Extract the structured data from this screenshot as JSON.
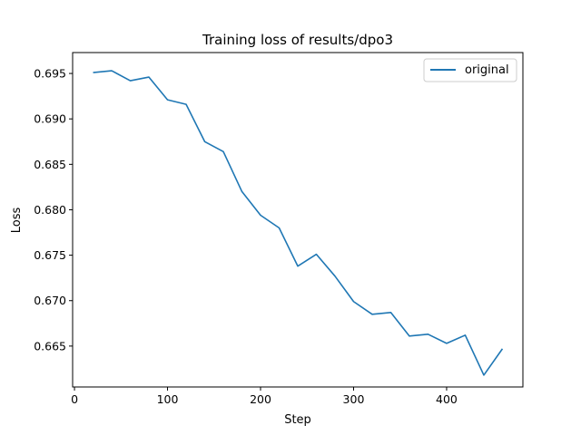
{
  "chart_data": {
    "type": "line",
    "title": "Training loss of results/dpo3",
    "xlabel": "Step",
    "ylabel": "Loss",
    "xlim": [
      -2,
      482
    ],
    "ylim": [
      0.6605,
      0.6973
    ],
    "xticks": [
      0,
      100,
      200,
      300,
      400
    ],
    "xtick_labels": [
      "0",
      "100",
      "200",
      "300",
      "400"
    ],
    "yticks": [
      0.665,
      0.67,
      0.675,
      0.68,
      0.685,
      0.69,
      0.695
    ],
    "ytick_labels": [
      "0.665",
      "0.670",
      "0.675",
      "0.680",
      "0.685",
      "0.690",
      "0.695"
    ],
    "legend_position": "top-right",
    "grid": false,
    "series": [
      {
        "name": "original",
        "color": "#1f77b4",
        "x": [
          20,
          40,
          60,
          80,
          100,
          120,
          140,
          160,
          180,
          200,
          220,
          240,
          260,
          280,
          300,
          320,
          340,
          360,
          380,
          400,
          420,
          440,
          460
        ],
        "y": [
          0.6951,
          0.6953,
          0.6942,
          0.6946,
          0.6921,
          0.6916,
          0.6875,
          0.6864,
          0.682,
          0.6794,
          0.678,
          0.6738,
          0.6751,
          0.6727,
          0.6699,
          0.6685,
          0.6687,
          0.6661,
          0.6663,
          0.6653,
          0.6662,
          0.6618,
          0.6647
        ]
      }
    ]
  }
}
